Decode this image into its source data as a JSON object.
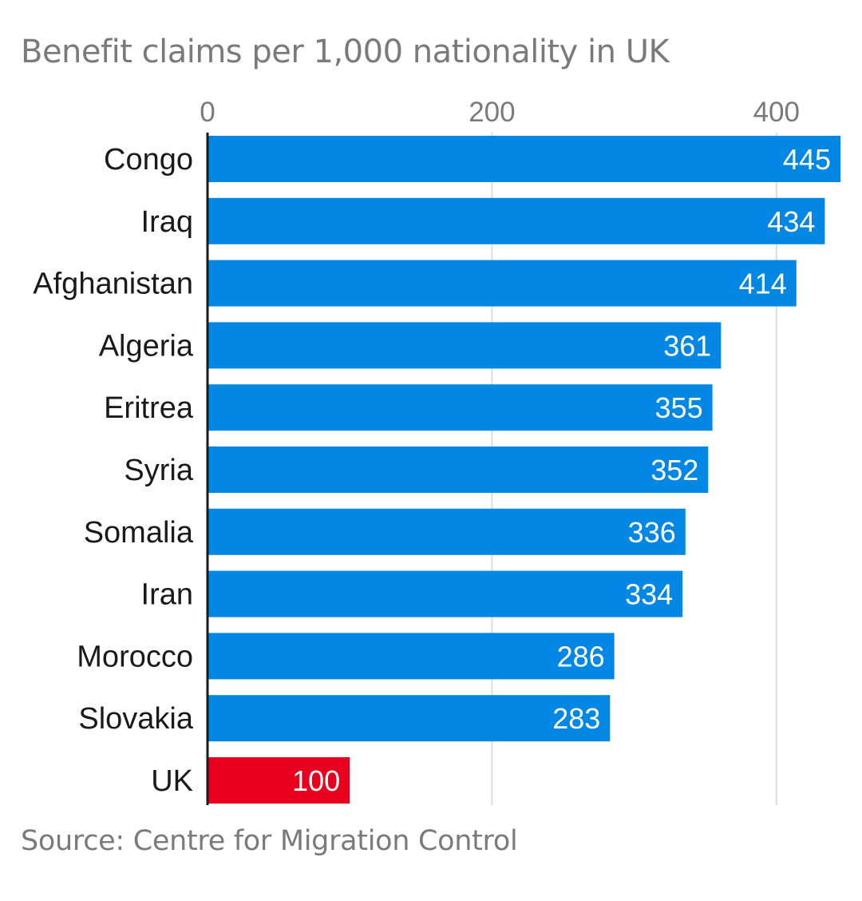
{
  "chart_data": {
    "type": "bar",
    "orientation": "horizontal",
    "title": "Benefit claims per 1,000 nationality in UK",
    "source": "Source: Centre for Migration Control",
    "xlim": [
      0,
      445
    ],
    "x_ticks": [
      0,
      200,
      400
    ],
    "x_tick_labels": [
      "0",
      "200",
      "400"
    ],
    "grid": true,
    "categories": [
      "Congo",
      "Iraq",
      "Afghanistan",
      "Algeria",
      "Eritrea",
      "Syria",
      "Somalia",
      "Iran",
      "Morocco",
      "Slovakia",
      "UK"
    ],
    "values": [
      445,
      434,
      414,
      361,
      355,
      352,
      336,
      334,
      286,
      283,
      100
    ],
    "colors": {
      "default": "#0288e4",
      "highlight": "#e8001e",
      "highlight_category": "UK",
      "grid": "#dcdcdc",
      "axis": "#1a1a1a"
    }
  }
}
